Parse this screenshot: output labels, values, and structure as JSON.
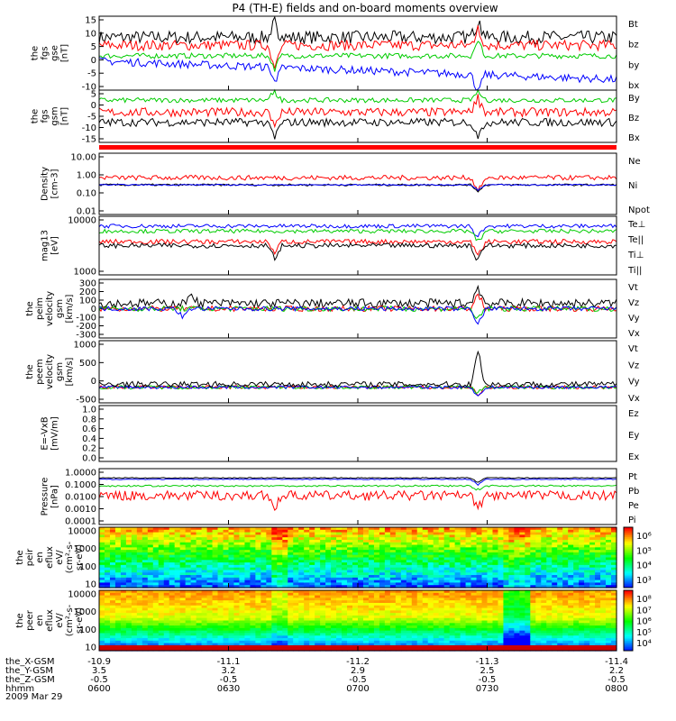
{
  "title": "P4 (TH-E) fields and on-board moments overview",
  "date": "2009 Mar 29",
  "panels": [
    {
      "id": "fgs-gse",
      "ylabel": [
        "the",
        "fgs",
        "gse",
        "[nT]"
      ],
      "yticks": [
        "15",
        "10",
        "5",
        "0",
        "-5",
        "-10"
      ],
      "ylim": [
        -12,
        16
      ],
      "legend": [
        {
          "label": "Bt",
          "color": "#000000"
        },
        {
          "label": "bz",
          "color": "#ff0000"
        },
        {
          "label": "by",
          "color": "#00cc00"
        },
        {
          "label": "bx",
          "color": "#0000ff"
        }
      ],
      "series": [
        {
          "name": "Bt",
          "color": "#000000",
          "base": 8,
          "noise": 2.5,
          "spikes": [
            [
              95,
              14
            ],
            [
              205,
              16
            ]
          ]
        },
        {
          "name": "bz",
          "color": "#ff0000",
          "base": 5,
          "noise": 2.0,
          "spikes": [
            [
              95,
              -6
            ],
            [
              205,
              12
            ]
          ]
        },
        {
          "name": "by",
          "color": "#00cc00",
          "base": 1,
          "noise": 1.0,
          "spikes": [
            [
              95,
              -5
            ],
            [
              205,
              8
            ]
          ]
        },
        {
          "name": "bx",
          "color": "#0000ff",
          "base": -1,
          "noise": 1.5,
          "trend": -7,
          "spikes": [
            [
              95,
              -8
            ],
            [
              205,
              -9
            ]
          ]
        }
      ]
    },
    {
      "id": "fgs-gsm",
      "ylabel": [
        "the",
        "fgs",
        "gsm",
        "[nT]"
      ],
      "yticks": [
        "5",
        "0",
        "-5",
        "-10",
        "-15"
      ],
      "ylim": [
        -18,
        8
      ],
      "legend": [
        {
          "label": "By",
          "color": "#00cc00"
        },
        {
          "label": "Bz",
          "color": "#ff0000"
        },
        {
          "label": "Bx",
          "color": "#000000"
        }
      ],
      "series": [
        {
          "name": "By",
          "color": "#00cc00",
          "base": 3,
          "noise": 1.2,
          "spikes": [
            [
              95,
              8
            ],
            [
              205,
              8
            ]
          ]
        },
        {
          "name": "Bz",
          "color": "#ff0000",
          "base": -3,
          "noise": 2.2,
          "spikes": [
            [
              95,
              -10
            ],
            [
              205,
              6
            ]
          ]
        },
        {
          "name": "Bx",
          "color": "#000000",
          "base": -8,
          "noise": 2.0,
          "spikes": [
            [
              95,
              -17
            ],
            [
              205,
              -16
            ]
          ]
        }
      ]
    },
    {
      "id": "density",
      "ylabel": [
        "Density",
        "[cm-3]"
      ],
      "yticks": [
        "10.00",
        "1.00",
        "0.10",
        "0.01"
      ],
      "ylim": [
        -2,
        1
      ],
      "log": true,
      "legend": [
        {
          "label": "Ne",
          "color": "#ff0000"
        },
        {
          "label": "Ni",
          "color": "#000000"
        },
        {
          "label": "Npot",
          "color": "#0000ff"
        }
      ],
      "series": [
        {
          "name": "Ne",
          "color": "#ff0000",
          "base": -0.2,
          "noise": 0.12,
          "spikes": [
            [
              205,
              -1.2
            ]
          ]
        },
        {
          "name": "Ni",
          "color": "#000000",
          "base": -0.55,
          "noise": 0.05,
          "spikes": [
            [
              205,
              -1.0
            ]
          ]
        },
        {
          "name": "Npot",
          "color": "#0000ff",
          "base": -0.55,
          "noise": 0.03,
          "spikes": [
            [
              205,
              -0.9
            ]
          ]
        }
      ]
    },
    {
      "id": "temperature",
      "ylabel": [
        "mag13",
        "[eV]"
      ],
      "yticks": [
        "10000",
        "1000"
      ],
      "ylim": [
        2.6,
        4.1
      ],
      "log": true,
      "legend": [
        {
          "label": "Te⊥",
          "color": "#ff0000"
        },
        {
          "label": "Te||",
          "color": "#000000"
        },
        {
          "label": "Ti⊥",
          "color": "#0000ff"
        },
        {
          "label": "Ti||",
          "color": "#00cc00"
        }
      ],
      "series": [
        {
          "name": "Ti⊥",
          "color": "#0000ff",
          "base": 3.85,
          "noise": 0.05,
          "spikes": [
            [
              205,
              3.5
            ]
          ]
        },
        {
          "name": "Ti||",
          "color": "#00cc00",
          "base": 3.72,
          "noise": 0.05,
          "spikes": [
            [
              205,
              3.4
            ]
          ]
        },
        {
          "name": "Te⊥",
          "color": "#ff0000",
          "base": 3.45,
          "noise": 0.06,
          "spikes": [
            [
              95,
              3.1
            ],
            [
              205,
              3.0
            ]
          ]
        },
        {
          "name": "Te||",
          "color": "#000000",
          "base": 3.35,
          "noise": 0.06,
          "spikes": [
            [
              95,
              3.0
            ],
            [
              205,
              2.9
            ]
          ]
        }
      ]
    },
    {
      "id": "peim-velocity",
      "ylabel": [
        "the",
        "peim",
        "velocity",
        "gsm",
        "[km/s]"
      ],
      "yticks": [
        "300",
        "200",
        "100",
        "0",
        "-100",
        "-200",
        "-300"
      ],
      "ylim": [
        -330,
        330
      ],
      "legend": [
        {
          "label": "Vt",
          "color": "#000000"
        },
        {
          "label": "Vz",
          "color": "#ff0000"
        },
        {
          "label": "Vy",
          "color": "#00cc00"
        },
        {
          "label": "Vx",
          "color": "#0000ff"
        }
      ],
      "series": [
        {
          "name": "Vt",
          "color": "#000000",
          "base": 60,
          "noise": 50,
          "spikes": [
            [
              50,
              200
            ],
            [
              205,
              300
            ]
          ]
        },
        {
          "name": "Vz",
          "color": "#ff0000",
          "base": 0,
          "noise": 30,
          "spikes": [
            [
              205,
              200
            ]
          ]
        },
        {
          "name": "Vy",
          "color": "#00cc00",
          "base": 0,
          "noise": 30,
          "spikes": [
            [
              205,
              -150
            ]
          ]
        },
        {
          "name": "Vx",
          "color": "#0000ff",
          "base": 0,
          "noise": 25,
          "spikes": [
            [
              45,
              -100
            ],
            [
              205,
              -280
            ]
          ]
        }
      ]
    },
    {
      "id": "peem-velocity",
      "ylabel": [
        "the",
        "peem",
        "velocity",
        "gsm",
        "[km/s]"
      ],
      "yticks": [
        "1000",
        "500",
        "0",
        "-500"
      ],
      "ylim": [
        -520,
        1550
      ],
      "legend": [
        {
          "label": "Vt",
          "color": "#000000"
        },
        {
          "label": "Vz",
          "color": "#ff0000"
        },
        {
          "label": "Vy",
          "color": "#00cc00"
        },
        {
          "label": "Vx",
          "color": "#0000ff"
        }
      ],
      "series": [
        {
          "name": "Vz",
          "color": "#ff0000",
          "base": 0,
          "noise": 60,
          "spikes": [
            [
              205,
              -300
            ]
          ]
        },
        {
          "name": "Vy",
          "color": "#00cc00",
          "base": 0,
          "noise": 60,
          "spikes": [
            [
              205,
              -250
            ]
          ]
        },
        {
          "name": "Vx",
          "color": "#0000ff",
          "base": 0,
          "noise": 50,
          "spikes": [
            [
              205,
              -400
            ]
          ]
        },
        {
          "name": "Vt",
          "color": "#000000",
          "base": 100,
          "noise": 90,
          "spikes": [
            [
              205,
              1400
            ]
          ]
        }
      ]
    },
    {
      "id": "efield",
      "ylabel": [
        "E=-VxB",
        "[mV/m]"
      ],
      "yticks": [
        "1.0",
        "0.8",
        "0.6",
        "0.4",
        "0.2",
        "0.0"
      ],
      "ylim": [
        0,
        1
      ],
      "legend": [
        {
          "label": "Ez",
          "color": "#ff0000"
        },
        {
          "label": "Ey",
          "color": "#00cc00"
        },
        {
          "label": "Ex",
          "color": "#0000ff"
        }
      ],
      "series": []
    },
    {
      "id": "pressure",
      "ylabel": [
        "Pressure",
        "[nPa]"
      ],
      "yticks": [
        "1.0000",
        "0.1000",
        "0.0100",
        "0.0010",
        "0.0001"
      ],
      "ylim": [
        -4,
        0.05
      ],
      "log": true,
      "legend": [
        {
          "label": "Pt",
          "color": "#000000"
        },
        {
          "label": "Pb",
          "color": "#ff0000"
        },
        {
          "label": "Pe",
          "color": "#00cc00"
        },
        {
          "label": "Pi",
          "color": "#0000ff"
        }
      ],
      "series": [
        {
          "name": "Pi",
          "color": "#0000ff",
          "base": -0.72,
          "noise": 0.03,
          "spikes": [
            [
              205,
              -1.2
            ]
          ]
        },
        {
          "name": "Pt",
          "color": "#000000",
          "base": -0.62,
          "noise": 0.03,
          "spikes": [
            [
              205,
              -1.0
            ]
          ]
        },
        {
          "name": "Pe",
          "color": "#00cc00",
          "base": -1.2,
          "noise": 0.06,
          "spikes": [
            [
              205,
              -1.6
            ]
          ]
        },
        {
          "name": "Pb",
          "color": "#ff0000",
          "base": -1.9,
          "noise": 0.35,
          "spikes": [
            [
              95,
              -2.8
            ],
            [
              205,
              -3.2
            ]
          ]
        }
      ]
    },
    {
      "id": "peir-eflux",
      "ylabel": [
        "the",
        "peir",
        "en",
        "eflux",
        "eV/",
        "(cm²-s-",
        "sr-eV)"
      ],
      "yticks": [
        "10000",
        "1000",
        "100",
        "10"
      ],
      "spectrogram": "ion",
      "colorbar": [
        "10⁶",
        "10⁵",
        "10⁴",
        "10³"
      ]
    },
    {
      "id": "peer-eflux",
      "ylabel": [
        "the",
        "peer",
        "en",
        "eflux",
        "eV/",
        "(cm²-s-",
        "sr-eV)"
      ],
      "yticks": [
        "10000",
        "1000",
        "100",
        "10"
      ],
      "spectrogram": "electron",
      "colorbar": [
        "10⁸",
        "10⁷",
        "10⁶",
        "10⁵",
        "10⁴"
      ]
    }
  ],
  "orbit": {
    "labels": [
      "the_X-GSM",
      "the_Y-GSM",
      "the_Z-GSM",
      "hhmm"
    ],
    "columns": [
      [
        "-10.9",
        "3.5",
        "-0.5",
        "0600"
      ],
      [
        "-11.1",
        "3.2",
        "-0.5",
        "0630"
      ],
      [
        "-11.2",
        "2.9",
        "-0.5",
        "0700"
      ],
      [
        "-11.3",
        "2.5",
        "-0.5",
        "0730"
      ],
      [
        "-11.4",
        "2.2",
        "-0.5",
        "0800"
      ]
    ]
  },
  "chart_data": {
    "type": "line",
    "title": "P4 (TH-E) fields and on-board moments overview",
    "x": [
      "0600",
      "0630",
      "0700",
      "0730",
      "0800"
    ],
    "xlabel": "hhmm",
    "date": "2009 Mar 29",
    "series": [
      {
        "name": "Bt",
        "panel": "the fgs gse [nT]",
        "values": [
          7,
          10,
          8,
          12,
          8
        ]
      },
      {
        "name": "bz",
        "panel": "the fgs gse [nT]",
        "values": [
          5,
          7,
          5,
          6,
          4
        ]
      },
      {
        "name": "by",
        "panel": "the fgs gse [nT]",
        "values": [
          1,
          1,
          1,
          2,
          1
        ]
      },
      {
        "name": "bx",
        "panel": "the fgs gse [nT]",
        "values": [
          -1,
          -2,
          -4,
          -6,
          -8
        ]
      },
      {
        "name": "Ne",
        "panel": "Density [cm-3]",
        "values": [
          0.6,
          0.5,
          0.6,
          0.7,
          0.6
        ]
      },
      {
        "name": "Ni",
        "panel": "Density [cm-3]",
        "values": [
          0.3,
          0.3,
          0.3,
          0.3,
          0.3
        ]
      },
      {
        "name": "Npot",
        "panel": "Density [cm-3]",
        "values": [
          0.3,
          0.3,
          0.3,
          0.3,
          0.3
        ]
      },
      {
        "name": "Pt",
        "panel": "Pressure [nPa]",
        "values": [
          0.24,
          0.24,
          0.22,
          0.2,
          0.22
        ]
      },
      {
        "name": "Pb",
        "panel": "Pressure [nPa]",
        "values": [
          0.015,
          0.01,
          0.012,
          0.015,
          0.01
        ]
      }
    ],
    "ylim_panels": {
      "the fgs gse [nT]": [
        -12,
        16
      ],
      "the fgs gsm [nT]": [
        -18,
        8
      ],
      "Density [cm-3]": [
        0.01,
        10
      ],
      "the peim velocity gsm [km/s]": [
        -300,
        300
      ],
      "the peem velocity gsm [km/s]": [
        -500,
        1500
      ],
      "E=-VxB [mV/m]": [
        0.0,
        1.0
      ],
      "Pressure [nPa]": [
        0.0001,
        1.0
      ]
    }
  }
}
